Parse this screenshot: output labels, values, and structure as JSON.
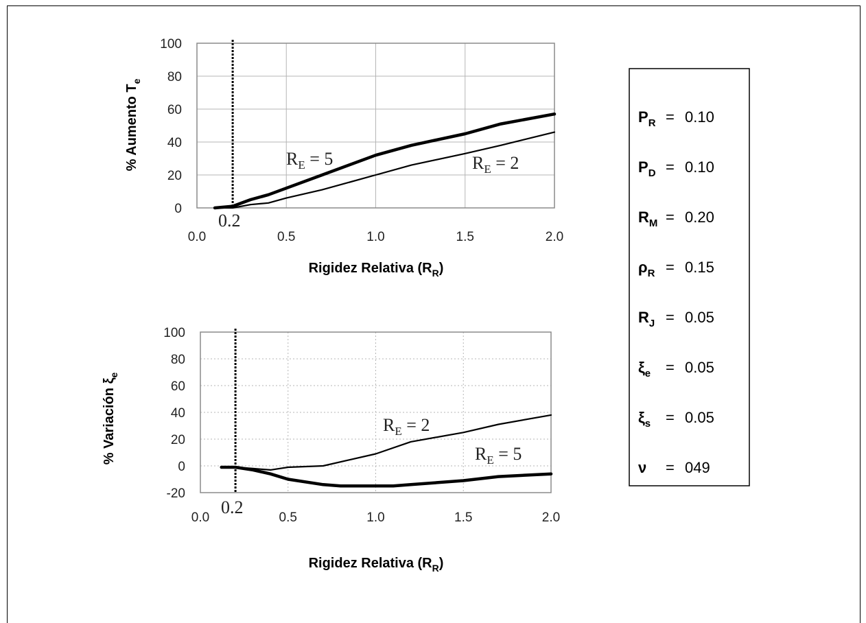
{
  "chart_data": [
    {
      "type": "line",
      "id": "top",
      "xlabel": "Rigidez Relativa (R",
      "xlabel_sub": "R",
      "xlabel_close": ")",
      "ylabel": "% Aumento T",
      "ylabel_sub": "e",
      "xlim": [
        0.0,
        2.0
      ],
      "ylim": [
        0,
        100
      ],
      "xticks": [
        "0.0",
        "0.5",
        "1.0",
        "1.5",
        "2.0"
      ],
      "yticks": [
        "0",
        "20",
        "40",
        "60",
        "80",
        "100"
      ],
      "ytick_values": [
        0,
        20,
        40,
        60,
        80,
        100
      ],
      "grid": "solid",
      "marker_x": 0.2,
      "marker_label": "0.2",
      "series": [
        {
          "name": "R",
          "name_sub": "E",
          "name_rest": " = 5",
          "x": [
            0.1,
            0.2,
            0.3,
            0.4,
            0.5,
            0.7,
            1.0,
            1.2,
            1.5,
            1.7,
            2.0
          ],
          "y": [
            0,
            1,
            5,
            8,
            12,
            20,
            32,
            38,
            45,
            51,
            57
          ]
        },
        {
          "name": "R",
          "name_sub": "E",
          "name_rest": " = 2",
          "x": [
            0.1,
            0.2,
            0.3,
            0.4,
            0.5,
            0.7,
            1.0,
            1.2,
            1.5,
            1.7,
            2.0
          ],
          "y": [
            0,
            0,
            2,
            3,
            6,
            11,
            20,
            26,
            33,
            38,
            46
          ]
        }
      ]
    },
    {
      "type": "line",
      "id": "bottom",
      "xlabel": "Rigidez Relativa (R",
      "xlabel_sub": "R",
      "xlabel_close": ")",
      "ylabel": "% Variación ξ",
      "ylabel_sub": "e",
      "xlim": [
        0.0,
        2.0
      ],
      "ylim": [
        -20,
        100
      ],
      "xticks": [
        "0.0",
        "0.5",
        "1.0",
        "1.5",
        "2.0"
      ],
      "yticks": [
        "-20",
        "0",
        "20",
        "40",
        "60",
        "80",
        "100"
      ],
      "ytick_values": [
        -20,
        0,
        20,
        40,
        60,
        80,
        100
      ],
      "grid": "dotted",
      "marker_x": 0.2,
      "marker_label": "0.2",
      "series": [
        {
          "name": "R",
          "name_sub": "E",
          "name_rest": " = 2",
          "x": [
            0.12,
            0.2,
            0.3,
            0.4,
            0.5,
            0.7,
            1.0,
            1.2,
            1.5,
            1.7,
            2.0
          ],
          "y": [
            -1,
            -1,
            -2,
            -3,
            -1,
            0,
            9,
            18,
            25,
            31,
            38
          ]
        },
        {
          "name": "R",
          "name_sub": "E",
          "name_rest": " = 5",
          "x": [
            0.12,
            0.2,
            0.3,
            0.4,
            0.5,
            0.7,
            0.8,
            1.0,
            1.1,
            1.2,
            1.5,
            1.7,
            2.0
          ],
          "y": [
            -1,
            -1,
            -3,
            -6,
            -10,
            -14,
            -15,
            -15,
            -15,
            -14,
            -11,
            -8,
            -6
          ]
        }
      ]
    }
  ],
  "parameters": [
    {
      "symbol": "P",
      "sub": "R",
      "eq": "=",
      "value": "0.10"
    },
    {
      "symbol": "P",
      "sub": "D",
      "eq": "=",
      "value": "0.10"
    },
    {
      "symbol": "R",
      "sub": "M",
      "eq": "=",
      "value": "0.20"
    },
    {
      "symbol": "ρ",
      "sub": "R",
      "eq": "=",
      "value": "0.15"
    },
    {
      "symbol": "R",
      "sub": "J",
      "eq": "=",
      "value": "0.05"
    },
    {
      "symbol": "ξ",
      "sub": "e",
      "eq": "=",
      "value": "0.05"
    },
    {
      "symbol": "ξ",
      "sub": "s",
      "eq": "=",
      "value": "0.05"
    },
    {
      "symbol": "ν",
      "sub": "",
      "eq": "=",
      "value": "049"
    }
  ]
}
